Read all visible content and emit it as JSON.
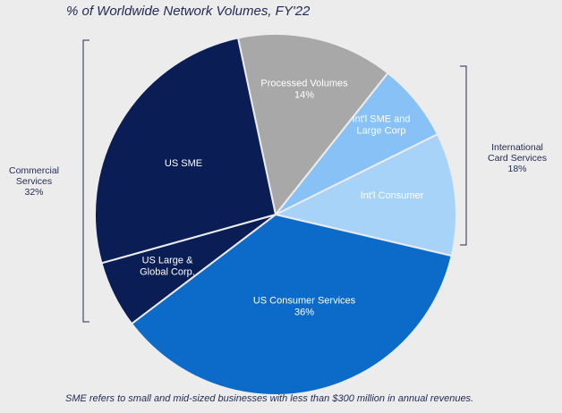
{
  "title": "% of Worldwide Network Volumes, FY'22",
  "footnote": "SME refers to small and mid-sized businesses with less than $300 million in annual revenues.",
  "groups": {
    "commercial": {
      "line1": "Commercial",
      "line2": "Services",
      "value": "32%"
    },
    "international": {
      "line1": "International",
      "line2": "Card Services",
      "value": "18%"
    }
  },
  "chart_data": {
    "type": "pie",
    "title": "% of Worldwide Network Volumes, FY'22",
    "slices": [
      {
        "label": [
          "Processed Volumes"
        ],
        "value_label": "14%",
        "value": 14,
        "color": "#a8a8a8",
        "text_color": "#ffffff"
      },
      {
        "label": [
          "Int'l SME and",
          "Large Corp"
        ],
        "value_label": "",
        "value": 7,
        "color": "#87c1f5",
        "text_color": "#ffffff"
      },
      {
        "label": [
          "Int'l Consumer"
        ],
        "value_label": "",
        "value": 11,
        "color": "#a8d3f9",
        "text_color": "#ffffff"
      },
      {
        "label": [
          "US Consumer Services"
        ],
        "value_label": "36%",
        "value": 36,
        "color": "#0c6ac8",
        "text_color": "#ffffff"
      },
      {
        "label": [
          "US Large &",
          "Global Corp."
        ],
        "value_label": "",
        "value": 6,
        "color": "#0a1e55",
        "text_color": "#ffffff"
      },
      {
        "label": [
          "US SME"
        ],
        "value_label": "",
        "value": 26,
        "color": "#0a1e55",
        "text_color": "#ffffff"
      }
    ],
    "groups": [
      {
        "name": "Commercial Services",
        "value": 32,
        "slices": [
          "US SME",
          "US Large & Global Corp."
        ]
      },
      {
        "name": "International Card Services",
        "value": 18,
        "slices": [
          "Int'l SME and Large Corp",
          "Int'l Consumer"
        ]
      }
    ]
  }
}
